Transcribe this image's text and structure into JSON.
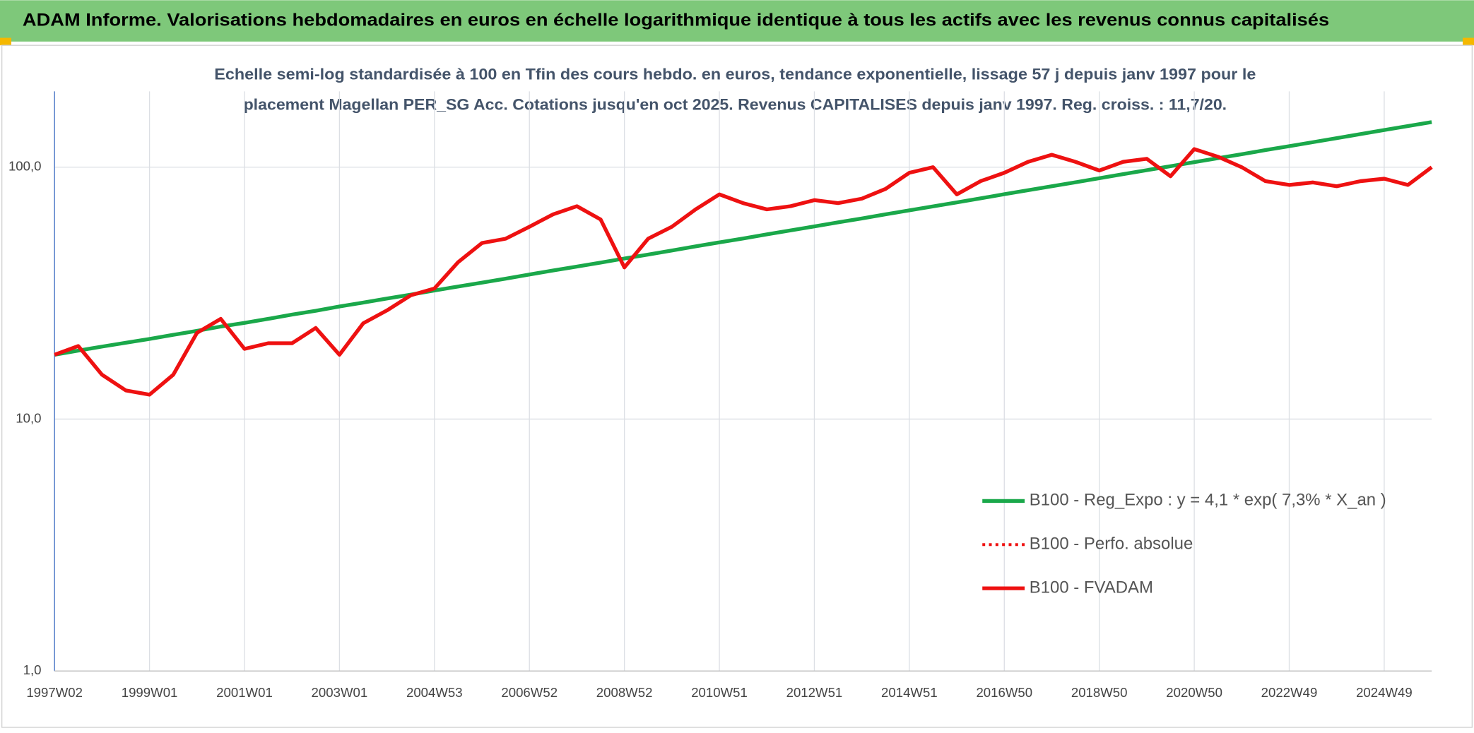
{
  "chart_data": {
    "type": "line",
    "title": "ADAM Informe. Valorisations hebdomadaires en euros en échelle logarithmique identique à tous les actifs avec les revenus connus capitalisés",
    "subtitle": [
      "Echelle semi-log standardisée à 100 en Tfin des cours hebdo. en euros, tendance exponentielle, lissage 57 j depuis janv 1997 pour le",
      "placement Magellan PER_SG Acc. Cotations jusqu'en oct 2025. Revenus CAPITALISES depuis janv 1997. Reg. croiss. : 11,7/20."
    ],
    "categories": [
      "1997W02",
      null,
      null,
      null,
      "1999W01",
      null,
      null,
      null,
      "2001W01",
      null,
      null,
      null,
      "2003W01",
      null,
      null,
      null,
      "2004W53",
      null,
      null,
      null,
      "2006W52",
      null,
      null,
      null,
      "2008W52",
      null,
      null,
      null,
      "2010W51",
      null,
      null,
      null,
      "2012W51",
      null,
      null,
      null,
      "2014W51",
      null,
      null,
      null,
      "2016W50",
      null,
      null,
      null,
      "2018W50",
      null,
      null,
      null,
      "2020W50",
      null,
      null,
      null,
      "2022W49",
      null,
      null,
      null,
      "2024W49",
      null,
      null
    ],
    "series": [
      {
        "name": "B100 - Reg_Expo : y = 4,1 * exp( 7,3% *  X_an )",
        "color": "#1aa84a",
        "style": "solid",
        "values": [
          18.0,
          18.7,
          19.4,
          20.1,
          20.8,
          21.6,
          22.4,
          23.3,
          24.1,
          25.0,
          26.0,
          26.9,
          28.0,
          29.0,
          30.1,
          31.2,
          32.4,
          33.6,
          34.8,
          36.1,
          37.5,
          38.9,
          40.3,
          41.8,
          43.4,
          45.0,
          46.7,
          48.5,
          50.3,
          52.1,
          54.1,
          56.1,
          58.2,
          60.4,
          62.6,
          65.0,
          67.4,
          69.9,
          72.5,
          75.2,
          78.1,
          81.0,
          84.0,
          87.1,
          90.4,
          93.8,
          97.3,
          100.9,
          104.7,
          108.6,
          112.6,
          116.9,
          121.2,
          125.7,
          130.4,
          135.3,
          140.4,
          145.6,
          151.0
        ]
      },
      {
        "name": "B100 - Perfo. absolue",
        "color": "#ee1111",
        "style": "dotted",
        "values": [
          18,
          19.5,
          15,
          13,
          12.5,
          15,
          22,
          25,
          19,
          20,
          20,
          23,
          18,
          24,
          27,
          31,
          33,
          42,
          50,
          52,
          58,
          65,
          70,
          62,
          40,
          52,
          58,
          68,
          78,
          72,
          68,
          70,
          74,
          72,
          75,
          82,
          95,
          100,
          78,
          88,
          95,
          105,
          112,
          105,
          97,
          105,
          108,
          92,
          118,
          110,
          100,
          88,
          85,
          87,
          84,
          88,
          90,
          85,
          100
        ]
      },
      {
        "name": "B100 - FVADAM",
        "color": "#ee1111",
        "style": "solid",
        "values": [
          18,
          19.5,
          15,
          13,
          12.5,
          15,
          22,
          25,
          19,
          20,
          20,
          23,
          18,
          24,
          27,
          31,
          33,
          42,
          50,
          52,
          58,
          65,
          70,
          62,
          40,
          52,
          58,
          68,
          78,
          72,
          68,
          70,
          74,
          72,
          75,
          82,
          95,
          100,
          78,
          88,
          95,
          105,
          112,
          105,
          97,
          105,
          108,
          92,
          118,
          110,
          100,
          88,
          85,
          87,
          84,
          88,
          90,
          85,
          100
        ]
      }
    ],
    "log_scale": true,
    "ylim": [
      1,
      200
    ],
    "yticks": [
      {
        "value": 1,
        "label": "1,0"
      },
      {
        "value": 10,
        "label": "10,0"
      },
      {
        "value": 100,
        "label": "100,0"
      }
    ],
    "grid": true,
    "legend": "right"
  }
}
